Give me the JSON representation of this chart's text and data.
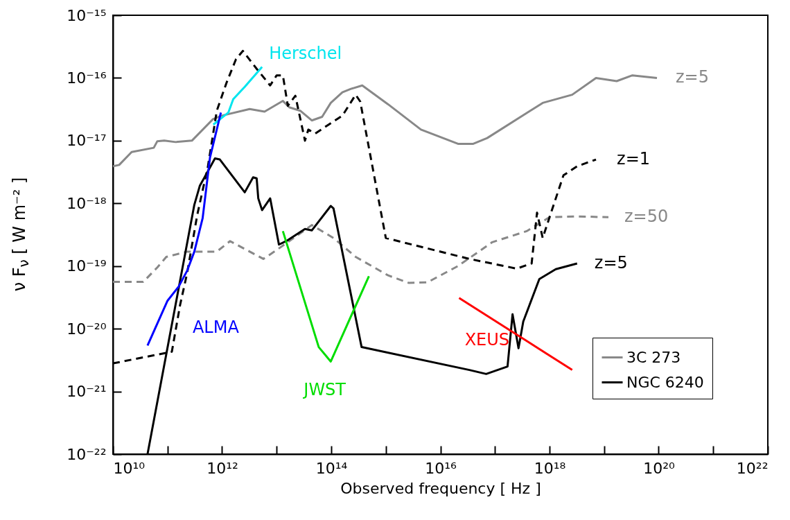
{
  "chart_data": {
    "type": "line",
    "xlabel": "Observed frequency [ Hz ]",
    "ylabel": "ν F$_{ν}$ [ W m⁻² ]",
    "log": "xy",
    "grid": false,
    "legend": "bottom right",
    "marker": "none",
    "xlim": [
      10000000000.0,
      1e+22
    ],
    "ylim": [
      1e-22,
      1e-15
    ],
    "xticks": [
      {
        "value": 10000000000.0,
        "label": "10¹⁰"
      },
      {
        "value": 100000000000.0,
        "label": null
      },
      {
        "value": 1000000000000.0,
        "label": "10¹²"
      },
      {
        "value": 10000000000000.0,
        "label": null
      },
      {
        "value": 100000000000000.0,
        "label": "10¹⁴"
      },
      {
        "value": 1000000000000000.0,
        "label": null
      },
      {
        "value": 1e+16,
        "label": "10¹⁶"
      },
      {
        "value": 1e+17,
        "label": null
      },
      {
        "value": 1e+18,
        "label": "10¹⁸"
      },
      {
        "value": 1e+19,
        "label": null
      },
      {
        "value": 1e+20,
        "label": "10²⁰"
      },
      {
        "value": 1e+21,
        "label": null
      },
      {
        "value": 1e+22,
        "label": "10²²"
      }
    ],
    "yticks": [
      {
        "value": 1e-22,
        "label": "10⁻²²"
      },
      {
        "value": 1e-21,
        "label": "10⁻²¹"
      },
      {
        "value": 1e-20,
        "label": "10⁻²⁰"
      },
      {
        "value": 1e-19,
        "label": "10⁻¹⁹"
      },
      {
        "value": 1e-18,
        "label": "10⁻¹⁸"
      },
      {
        "value": 1e-17,
        "label": "10⁻¹⁷"
      },
      {
        "value": 1e-16,
        "label": "10⁻¹⁶"
      },
      {
        "value": 1e-15,
        "label": "10⁻¹⁵"
      }
    ],
    "series": [
      {
        "name": "3C 273",
        "color": "#888888",
        "line_style": "solid",
        "x": [
          10000000000.0,
          13000000000.0,
          22000000000.0,
          56000000000.0,
          65000000000.0,
          87000000000.0,
          140000000000.0,
          280000000000.0,
          680000000000.0,
          980000000000.0,
          3200000000000.0,
          6000000000000.0,
          13000000000000.0,
          17000000000000.0,
          27000000000000.0,
          44000000000000.0,
          68000000000000.0,
          98000000000000.0,
          160000000000000.0,
          230000000000000.0,
          370000000000000.0,
          1100000000000000.0,
          4400000000000000.0,
          2.1e+16,
          4e+16,
          7.2e+16,
          7.5e+17,
          2.6e+18,
          7.1e+18,
          1.7e+19,
          3.3e+19,
          9.3e+19
        ],
        "values": [
          3.9e-18,
          4.1e-18,
          6.6e-18,
          7.7e-18,
          9.8e-18,
          1e-17,
          9.5e-18,
          1e-17,
          2.2e-17,
          2.5e-17,
          3.2e-17,
          2.9e-17,
          4.3e-17,
          3.4e-17,
          3e-17,
          2.1e-17,
          2.4e-17,
          4e-17,
          5.9e-17,
          6.7e-17,
          7.6e-17,
          3.8e-17,
          1.5e-17,
          8.9e-18,
          8.9e-18,
          1.1e-17,
          4e-17,
          5.4e-17,
          1e-16,
          8.9e-17,
          1.1e-16,
          1e-16
        ]
      },
      {
        "color": "#888888",
        "line_style": "dashed",
        "x": [
          10000000000.0,
          36000000000.0,
          65000000000.0,
          95000000000.0,
          230000000000.0,
          800000000000.0,
          1400000000000.0,
          3200000000000.0,
          5700000000000.0,
          10000000000000.0,
          44000000000000.0,
          110000000000000.0,
          280000000000000.0,
          1100000000000000.0,
          2600000000000000.0,
          5800000000000000.0,
          2.1e+16,
          8.9e+16,
          3.8e+17,
          1e+18,
          3.2e+18,
          1.2e+19
        ],
        "values": [
          5.6e-20,
          5.6e-20,
          9.5e-20,
          1.4e-19,
          1.7e-19,
          1.7e-19,
          2.5e-19,
          1.7e-19,
          1.3e-19,
          1.8e-19,
          4.5e-19,
          2.8e-19,
          1.4e-19,
          7.1e-20,
          5.4e-20,
          5.5e-20,
          1e-19,
          2.4e-19,
          3.6e-19,
          6e-19,
          6.2e-19,
          6e-19
        ]
      },
      {
        "color": "#000000",
        "line_style": "dashed",
        "x": [
          10000000000.0,
          120000000000.0,
          170000000000.0,
          230000000000.0,
          350000000000.0,
          550000000000.0,
          800000000000.0,
          1200000000000.0,
          1800000000000.0,
          2400000000000.0,
          4300000000000.0,
          7600000000000.0,
          10000000000000.0,
          13000000000000.0,
          16000000000000.0,
          22000000000000.0,
          33000000000000.0,
          38000000000000.0,
          51000000000000.0,
          98000000000000.0,
          160000000000000.0,
          280000000000000.0,
          340000000000000.0,
          1000000000000000.0,
          3.4e+16,
          2.5e+17,
          4.7e+17,
          5.9e+17,
          7.5e+17,
          1e+18,
          1.8e+18,
          3.2e+18,
          7.1e+18
        ],
        "values": [
          2.8e-21,
          4.3e-21,
          2.4e-20,
          7.9e-20,
          6.5e-19,
          3.9e-18,
          3e-17,
          8.3e-17,
          2e-16,
          2.7e-16,
          1.4e-16,
          7.6e-17,
          1.1e-16,
          1.1e-16,
          3.6e-17,
          5.2e-17,
          1e-17,
          1.5e-17,
          1.3e-17,
          1.9e-17,
          2.5e-17,
          5.4e-17,
          4.2e-17,
          2.8e-19,
          1.3e-19,
          9.1e-20,
          1.1e-19,
          7.1e-19,
          2.8e-19,
          6e-19,
          2.8e-18,
          3.9e-18,
          5e-18
        ]
      },
      {
        "name": "NGC 6240",
        "color": "#000000",
        "line_style": "solid",
        "x": [
          43000000000.0,
          310000000000.0,
          390000000000.0,
          500000000000.0,
          740000000000.0,
          910000000000.0,
          2600000000000.0,
          3700000000000.0,
          4300000000000.0,
          4600000000000.0,
          5400000000000.0,
          7600000000000.0,
          11000000000000.0,
          15000000000000.0,
          33000000000000.0,
          44000000000000.0,
          98000000000000.0,
          110000000000000.0,
          360000000000000.0,
          3.4e+16,
          6.9e+16,
          1.7e+17,
          2.1e+17,
          2.7e+17,
          3.3e+17,
          6.5e+17,
          1.3e+18,
          3.2e+18
        ],
        "values": [
          1e-22,
          9.5e-19,
          1.9e-18,
          2.8e-18,
          5.2e-18,
          5e-18,
          1.5e-18,
          2.6e-18,
          2.5e-18,
          1.2e-18,
          7.8e-19,
          1.2e-18,
          2.2e-19,
          2.5e-19,
          3.9e-19,
          3.7e-19,
          9.1e-19,
          8.3e-19,
          5.1e-21,
          2.2e-21,
          1.9e-21,
          2.5e-21,
          1.7e-20,
          4.9e-21,
          1.3e-20,
          6.2e-20,
          8.9e-20,
          1.1e-19
        ]
      },
      {
        "color": "#00e5ee",
        "line_style": "solid",
        "x": [
          690000000000.0,
          980000000000.0,
          1300000000000.0,
          1600000000000.0,
          2600000000000.0,
          5400000000000.0
        ],
        "values": [
          1.8e-17,
          2.3e-17,
          2.8e-17,
          4.6e-17,
          7.2e-17,
          1.5e-16
        ]
      },
      {
        "color": "#0000ff",
        "line_style": "solid",
        "x": [
          43000000000.0,
          100000000000.0,
          160000000000.0,
          230000000000.0,
          310000000000.0,
          440000000000.0,
          600000000000.0,
          950000000000.0
        ],
        "values": [
          5.4e-21,
          2.8e-20,
          4.7e-20,
          8.5e-20,
          1.7e-19,
          5.8e-19,
          5.4e-18,
          2.8e-17
        ]
      },
      {
        "color": "#00dd00",
        "line_style": "solid",
        "x": [
          13000000000000.0,
          59000000000000.0,
          98000000000000.0,
          490000000000000.0
        ],
        "values": [
          3.6e-19,
          5.1e-21,
          3e-21,
          6.9e-20
        ]
      },
      {
        "color": "#ff0000",
        "line_style": "solid",
        "x": [
          2.2e+16,
          2.6e+18
        ],
        "values": [
          3.1e-20,
          2.2e-21
        ]
      }
    ],
    "annotations": [
      "z=5",
      "z=50",
      "z=1",
      "z=5",
      "Herschel",
      "ALMA",
      "JWST",
      "XEUS"
    ]
  }
}
